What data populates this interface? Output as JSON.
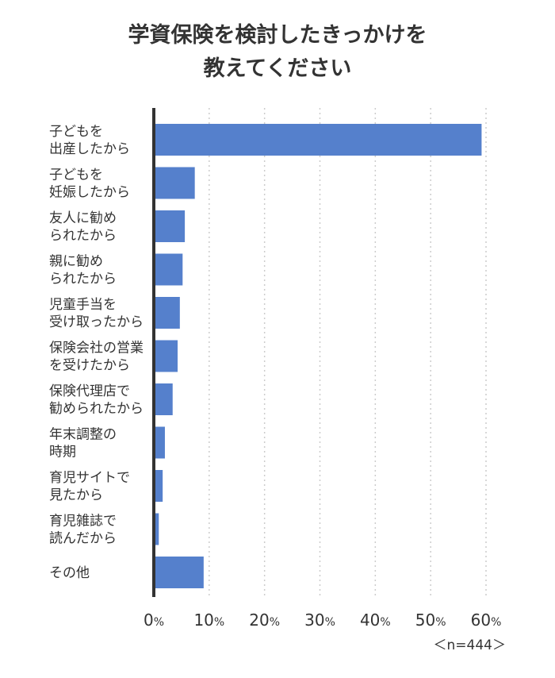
{
  "chart_data": {
    "type": "bar",
    "orientation": "horizontal",
    "title_lines": [
      "学資保険を検討したきっかけを",
      "教えてください"
    ],
    "categories": [
      [
        "子どもを",
        "出産したから"
      ],
      [
        "子どもを",
        "妊娠したから"
      ],
      [
        "友人に勧め",
        "られたから"
      ],
      [
        "親に勧め",
        "られたから"
      ],
      [
        "児童手当を",
        "受け取ったから"
      ],
      [
        "保険会社の営業",
        "を受けたから"
      ],
      [
        "保険代理店で",
        "勧められたから"
      ],
      [
        "年末調整の",
        "時期"
      ],
      [
        "育児サイトで",
        "見たから"
      ],
      [
        "育児雑誌で",
        "読んだから"
      ],
      [
        "その他"
      ]
    ],
    "values": [
      59.2,
      7.4,
      5.6,
      5.2,
      4.7,
      4.3,
      3.4,
      2.0,
      1.6,
      0.9,
      9.0
    ],
    "xlim": [
      0,
      60
    ],
    "xticks": [
      {
        "num": "0",
        "unit": "%"
      },
      {
        "num": "10",
        "unit": "%"
      },
      {
        "num": "20",
        "unit": "%"
      },
      {
        "num": "30",
        "unit": "%"
      },
      {
        "num": "40",
        "unit": "%"
      },
      {
        "num": "50",
        "unit": "%"
      },
      {
        "num": "60",
        "unit": "%"
      }
    ],
    "grid": "dotted-vertical",
    "bar_color": "#5580CC",
    "axis_color": "#333333",
    "grid_color": "#cccccc",
    "sample_note": "＜n=444＞"
  }
}
